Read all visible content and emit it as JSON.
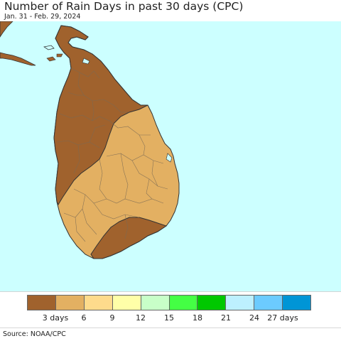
{
  "header": {
    "title": "Number of Rain Days in past 30 days (CPC)",
    "subtitle": "Jan. 31 - Feb. 29, 2024"
  },
  "colors": {
    "ocean": "#ccffff",
    "dark_brown": "#a0622d",
    "tan": "#e3b062",
    "district_lines": "#7a6a55",
    "coast": "#333333"
  },
  "legend": {
    "colors": [
      "#a0622d",
      "#e3b062",
      "#fedb8c",
      "#ffffa8",
      "#c8ffc8",
      "#44ff44",
      "#00c800",
      "#bdf0ff",
      "#6ccbff",
      "#0095d6"
    ],
    "ticks": [
      "3 days",
      "6",
      "9",
      "12",
      "15",
      "18",
      "21",
      "24",
      "27 days"
    ]
  },
  "footer": {
    "source": "Source: NOAA/CPC"
  }
}
